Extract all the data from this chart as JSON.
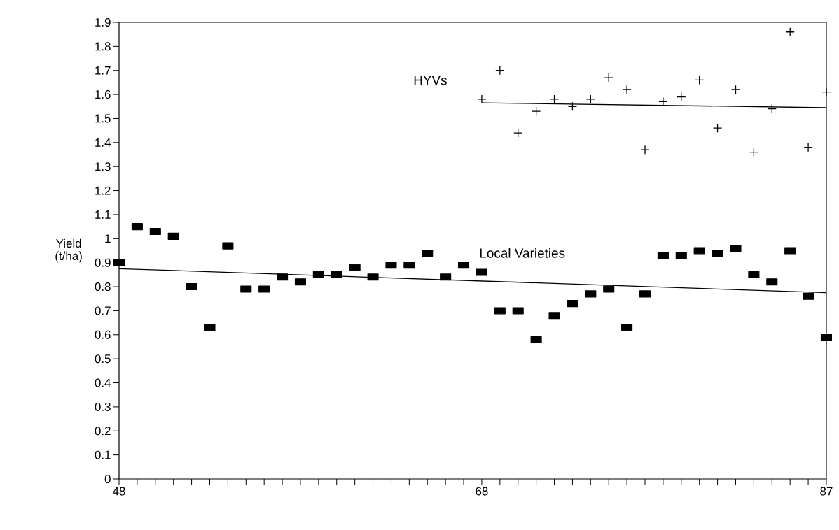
{
  "chart_data": {
    "type": "scatter",
    "ylabel": "Yield (t/ha)",
    "xlim": [
      48,
      87
    ],
    "ylim": [
      0,
      1.9
    ],
    "xticks": [
      48,
      {
        "value": 49,
        "label": null
      },
      {
        "value": 50,
        "label": null
      },
      {
        "value": 51,
        "label": null
      },
      {
        "value": 52,
        "label": null
      },
      {
        "value": 53,
        "label": null
      },
      {
        "value": 54,
        "label": null
      },
      {
        "value": 55,
        "label": null
      },
      {
        "value": 56,
        "label": null
      },
      {
        "value": 57,
        "label": null
      },
      {
        "value": 58,
        "label": null
      },
      {
        "value": 59,
        "label": null
      },
      {
        "value": 60,
        "label": null
      },
      {
        "value": 61,
        "label": null
      },
      {
        "value": 62,
        "label": null
      },
      {
        "value": 63,
        "label": null
      },
      {
        "value": 64,
        "label": null
      },
      {
        "value": 65,
        "label": null
      },
      {
        "value": 66,
        "label": null
      },
      {
        "value": 67,
        "label": null
      },
      68,
      {
        "value": 69,
        "label": null
      },
      {
        "value": 70,
        "label": null
      },
      {
        "value": 71,
        "label": null
      },
      {
        "value": 72,
        "label": null
      },
      {
        "value": 73,
        "label": null
      },
      {
        "value": 74,
        "label": null
      },
      {
        "value": 75,
        "label": null
      },
      {
        "value": 76,
        "label": null
      },
      {
        "value": 77,
        "label": null
      },
      {
        "value": 78,
        "label": null
      },
      {
        "value": 79,
        "label": null
      },
      {
        "value": 80,
        "label": null
      },
      {
        "value": 81,
        "label": null
      },
      {
        "value": 82,
        "label": null
      },
      {
        "value": 83,
        "label": null
      },
      {
        "value": 84,
        "label": null
      },
      {
        "value": 85,
        "label": null
      },
      {
        "value": 86,
        "label": null
      },
      87
    ],
    "yticks": [
      0,
      0.1,
      0.2,
      0.3,
      0.4,
      0.5,
      0.6,
      0.7,
      0.8,
      0.9,
      1,
      1.1,
      1.2,
      1.3,
      1.4,
      1.5,
      1.6,
      1.7,
      1.8,
      1.9
    ],
    "grid": false,
    "legend": false,
    "series": [
      {
        "name": "Local Varieties",
        "marker": "square",
        "color": "#000000",
        "x": [
          48,
          49,
          50,
          51,
          52,
          53,
          54,
          55,
          56,
          57,
          58,
          59,
          60,
          61,
          62,
          63,
          64,
          65,
          66,
          67,
          68,
          69,
          70,
          71,
          72,
          73,
          74,
          75,
          76,
          77,
          78,
          79,
          80,
          81,
          82,
          83,
          84,
          85,
          86,
          87
        ],
        "values": [
          0.9,
          1.05,
          1.03,
          1.01,
          0.8,
          0.63,
          0.97,
          0.79,
          0.79,
          0.84,
          0.82,
          0.85,
          0.85,
          0.88,
          0.84,
          0.89,
          0.89,
          0.94,
          0.84,
          0.89,
          0.86,
          0.7,
          0.7,
          0.58,
          0.68,
          0.73,
          0.77,
          0.79,
          0.63,
          0.77,
          0.93,
          0.93,
          0.95,
          0.94,
          0.96,
          0.85,
          0.82,
          0.95,
          0.76,
          0.59
        ]
      },
      {
        "name": "HYVs",
        "marker": "cross",
        "color": "#000000",
        "x": [
          68,
          69,
          70,
          71,
          72,
          73,
          74,
          75,
          76,
          77,
          78,
          79,
          80,
          81,
          82,
          83,
          84,
          85,
          86,
          87
        ],
        "values": [
          1.58,
          1.7,
          1.44,
          1.53,
          1.58,
          1.55,
          1.58,
          1.67,
          1.62,
          1.37,
          1.57,
          1.59,
          1.66,
          1.46,
          1.62,
          1.36,
          1.54,
          1.86,
          1.38,
          1.61
        ]
      },
      {
        "type": "line",
        "marker": "none",
        "line_style": "solid",
        "color": "#000000",
        "x": [
          48,
          87
        ],
        "values": [
          0.875,
          0.775
        ]
      },
      {
        "type": "line",
        "marker": "none",
        "line_style": "solid",
        "color": "#000000",
        "x": [
          68,
          87
        ],
        "values": [
          1.565,
          1.545
        ]
      }
    ]
  }
}
